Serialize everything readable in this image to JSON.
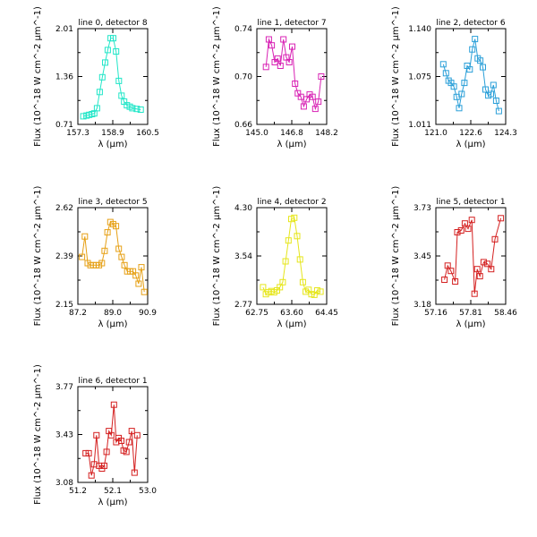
{
  "chart_data": [
    {
      "type": "scatter",
      "title": "line 0, detector 8",
      "xlabel": "λ (μm)",
      "ylabel": "Flux (10^-18 W cm^-2 μm^-1)",
      "xlim": [
        157.3,
        160.5
      ],
      "ylim": [
        0.71,
        2.01
      ],
      "xticks": [
        "157.3",
        "158.9",
        "160.5"
      ],
      "yticks": [
        "0.71",
        "1.36",
        "2.01"
      ],
      "color": "#22e6c8",
      "x": [
        157.55,
        157.7,
        157.82,
        157.95,
        158.05,
        158.18,
        158.3,
        158.42,
        158.55,
        158.67,
        158.8,
        158.92,
        159.05,
        159.18,
        159.3,
        159.42,
        159.55,
        159.68,
        159.8,
        160.0,
        160.18
      ],
      "y": [
        0.82,
        0.83,
        0.84,
        0.85,
        0.86,
        0.93,
        1.15,
        1.35,
        1.55,
        1.72,
        1.88,
        1.88,
        1.7,
        1.3,
        1.1,
        1.02,
        0.97,
        0.95,
        0.93,
        0.92,
        0.91
      ]
    },
    {
      "type": "scatter",
      "title": "line 1, detector 7",
      "xlabel": "λ (μm)",
      "ylabel": "Flux (10^-18 W cm^-2 μm^-1)",
      "xlim": [
        145.0,
        148.2
      ],
      "ylim": [
        0.66,
        0.74
      ],
      "xticks": [
        "145.0",
        "146.8",
        "148.2"
      ],
      "yticks": [
        "0.66",
        "0.70",
        "0.74"
      ],
      "color": "#d822b4",
      "x": [
        145.42,
        145.55,
        145.68,
        145.82,
        145.95,
        146.08,
        146.22,
        146.35,
        146.48,
        146.62,
        146.75,
        146.88,
        147.02,
        147.15,
        147.28,
        147.42,
        147.55,
        147.68,
        147.82,
        147.95
      ],
      "y": [
        0.708,
        0.731,
        0.726,
        0.712,
        0.715,
        0.709,
        0.731,
        0.716,
        0.712,
        0.725,
        0.694,
        0.686,
        0.683,
        0.675,
        0.681,
        0.685,
        0.683,
        0.673,
        0.679,
        0.7
      ]
    },
    {
      "type": "scatter",
      "title": "line 2, detector 6",
      "xlabel": "λ (μm)",
      "ylabel": "Flux (10^-18 W cm^-2 μm^-1)",
      "xlim": [
        121.0,
        124.3
      ],
      "ylim": [
        1.011,
        1.14
      ],
      "xticks": [
        "121.0",
        "122.6",
        "124.3"
      ],
      "yticks": [
        "1.011",
        "1.075",
        "1.140"
      ],
      "color": "#2a9fd8",
      "x": [
        121.35,
        121.48,
        121.6,
        121.72,
        121.85,
        121.98,
        122.1,
        122.22,
        122.35,
        122.48,
        122.6,
        122.72,
        122.85,
        122.98,
        123.1,
        123.22,
        123.35,
        123.48,
        123.6,
        123.72,
        123.85,
        123.98
      ],
      "y": [
        1.092,
        1.08,
        1.07,
        1.067,
        1.062,
        1.048,
        1.033,
        1.052,
        1.067,
        1.09,
        1.085,
        1.112,
        1.126,
        1.1,
        1.097,
        1.088,
        1.058,
        1.05,
        1.052,
        1.064,
        1.043,
        1.029
      ]
    },
    {
      "type": "scatter",
      "title": "line 3, detector 5",
      "xlabel": "λ (μm)",
      "ylabel": "Flux (10^-18 W cm^-2 μm^-1)",
      "xlim": [
        87.2,
        90.9
      ],
      "ylim": [
        2.15,
        2.62
      ],
      "xticks": [
        "87.2",
        "89.0",
        "90.9"
      ],
      "yticks": [
        "2.15",
        "2.39",
        "2.62"
      ],
      "color": "#e6a015",
      "x": [
        87.42,
        87.57,
        87.72,
        87.87,
        88.02,
        88.17,
        88.32,
        88.47,
        88.62,
        88.77,
        88.92,
        89.07,
        89.22,
        89.37,
        89.52,
        89.67,
        89.82,
        89.97,
        90.12,
        90.27,
        90.42,
        90.57,
        90.72
      ],
      "y": [
        2.38,
        2.48,
        2.35,
        2.34,
        2.34,
        2.34,
        2.34,
        2.35,
        2.41,
        2.5,
        2.55,
        2.54,
        2.53,
        2.42,
        2.38,
        2.34,
        2.31,
        2.31,
        2.31,
        2.29,
        2.25,
        2.33,
        2.21
      ]
    },
    {
      "type": "scatter",
      "title": "line 4, detector 2",
      "xlabel": "λ (μm)",
      "ylabel": "Flux (10^-18 W cm^-2 μm^-1)",
      "xlim": [
        62.75,
        64.45
      ],
      "ylim": [
        2.77,
        4.3
      ],
      "xticks": [
        "62.75",
        "63.60",
        "64.45"
      ],
      "yticks": [
        "2.77",
        "3.54",
        "4.30"
      ],
      "color": "#e6e61c",
      "x": [
        62.9,
        62.97,
        63.03,
        63.1,
        63.17,
        63.24,
        63.31,
        63.38,
        63.45,
        63.52,
        63.59,
        63.66,
        63.73,
        63.8,
        63.87,
        63.94,
        64.01,
        64.08,
        64.15,
        64.22,
        64.3
      ],
      "y": [
        3.04,
        2.93,
        2.96,
        2.98,
        2.96,
        2.99,
        3.04,
        3.12,
        3.45,
        3.78,
        4.12,
        4.14,
        3.85,
        3.48,
        3.12,
        2.97,
        3.0,
        2.93,
        2.92,
        2.99,
        2.97
      ]
    },
    {
      "type": "scatter",
      "title": "line 5, detector 1",
      "xlabel": "λ (μm)",
      "ylabel": "Flux (10^-18 W cm^-2 μm^-1)",
      "xlim": [
        57.16,
        58.46
      ],
      "ylim": [
        3.18,
        3.73
      ],
      "xticks": [
        "57.16",
        "57.81",
        "58.46"
      ],
      "yticks": [
        "3.18",
        "3.45",
        "3.73"
      ],
      "color": "#d42020",
      "x": [
        57.32,
        57.38,
        57.44,
        57.52,
        57.56,
        57.63,
        57.7,
        57.76,
        57.83,
        57.88,
        57.93,
        57.98,
        58.05,
        58.12,
        58.19,
        58.26,
        58.37
      ],
      "y": [
        3.32,
        3.4,
        3.37,
        3.31,
        3.59,
        3.6,
        3.64,
        3.61,
        3.66,
        3.24,
        3.38,
        3.34,
        3.42,
        3.41,
        3.38,
        3.55,
        3.67
      ]
    },
    {
      "type": "scatter",
      "title": "line 6, detector 1",
      "xlabel": "λ (μm)",
      "ylabel": "Flux (10^-18 W cm^-2 μm^-1)",
      "xlim": [
        51.2,
        53.0
      ],
      "ylim": [
        3.08,
        3.77
      ],
      "xticks": [
        "51.2",
        "52.1",
        "53.0"
      ],
      "yticks": [
        "3.08",
        "3.43",
        "3.77"
      ],
      "color": "#d42020",
      "x": [
        51.4,
        51.48,
        51.55,
        51.62,
        51.68,
        51.75,
        51.82,
        51.88,
        51.94,
        52.0,
        52.06,
        52.13,
        52.19,
        52.25,
        52.32,
        52.38,
        52.45,
        52.52,
        52.59,
        52.66,
        52.73
      ],
      "y": [
        3.29,
        3.29,
        3.13,
        3.21,
        3.42,
        3.2,
        3.18,
        3.2,
        3.3,
        3.45,
        3.42,
        3.64,
        3.37,
        3.4,
        3.38,
        3.31,
        3.3,
        3.37,
        3.45,
        3.15,
        3.42
      ]
    }
  ]
}
